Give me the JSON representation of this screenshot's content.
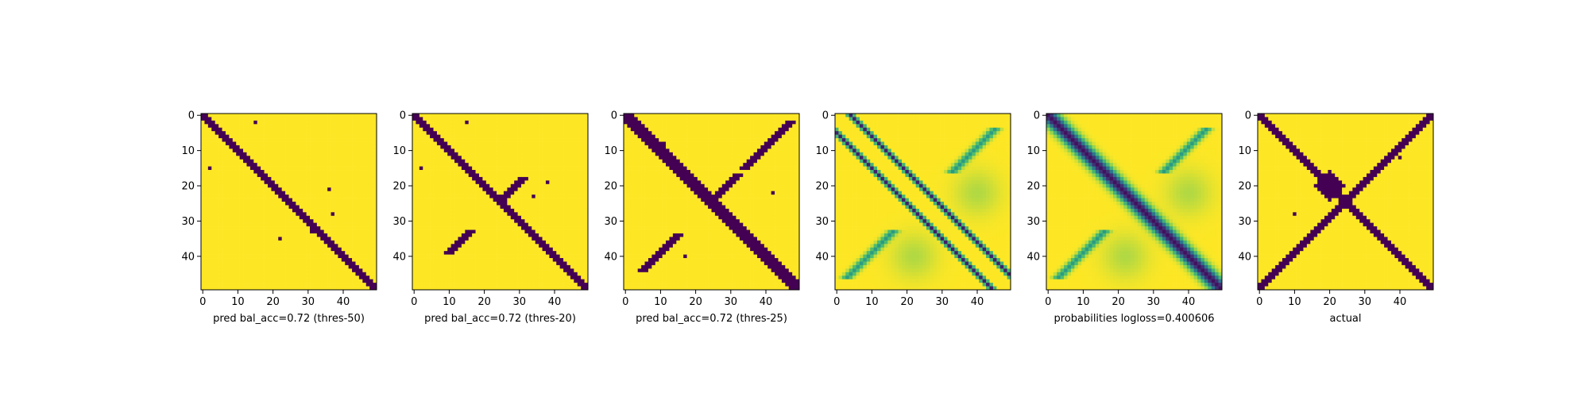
{
  "chart_data": [
    {
      "type": "heatmap",
      "colormap": "viridis",
      "title": "",
      "xlabel": "pred bal_acc=0.72 (thres-50)",
      "ylabel": "",
      "grid_size": 50,
      "xlim": [
        -0.5,
        49.5
      ],
      "ylim": [
        49.5,
        -0.5
      ],
      "xticks": [
        0,
        10,
        20,
        30,
        40
      ],
      "yticks": [
        0,
        10,
        20,
        30,
        40
      ],
      "binary": true,
      "main_diagonal_half_width": 1.5,
      "anti_band_segments": [],
      "extra_points": [
        [
          2,
          15
        ],
        [
          15,
          2
        ],
        [
          21,
          36
        ],
        [
          28,
          37
        ],
        [
          33,
          31
        ],
        [
          35,
          22
        ]
      ]
    },
    {
      "type": "heatmap",
      "colormap": "viridis",
      "title": "",
      "xlabel": "pred bal_acc=0.72 (thres-20)",
      "ylabel": "",
      "grid_size": 50,
      "xlim": [
        -0.5,
        49.5
      ],
      "ylim": [
        49.5,
        -0.5
      ],
      "xticks": [
        0,
        10,
        20,
        30,
        40
      ],
      "yticks": [
        0,
        10,
        20,
        30,
        40
      ],
      "binary": true,
      "main_diagonal_half_width": 1.5,
      "anti_band_segments": [
        [
          18,
          24
        ],
        [
          33,
          39
        ]
      ],
      "extra_points": [
        [
          2,
          15
        ],
        [
          15,
          2
        ],
        [
          19,
          38
        ],
        [
          23,
          34
        ]
      ]
    },
    {
      "type": "heatmap",
      "colormap": "viridis",
      "title": "",
      "xlabel": "pred bal_acc=0.72 (thres-25)",
      "ylabel": "",
      "grid_size": 50,
      "xlim": [
        -0.5,
        49.5
      ],
      "ylim": [
        49.5,
        -0.5
      ],
      "xticks": [
        0,
        10,
        20,
        30,
        40
      ],
      "yticks": [
        0,
        10,
        20,
        30,
        40
      ],
      "binary": true,
      "main_diagonal_half_width": 2.5,
      "anti_band_segments": [
        [
          2,
          8
        ],
        [
          9,
          15
        ],
        [
          17,
          25
        ],
        [
          34,
          44
        ]
      ],
      "extra_points": [
        [
          8,
          11
        ],
        [
          22,
          42
        ],
        [
          30,
          30
        ],
        [
          40,
          17
        ]
      ]
    },
    {
      "type": "heatmap",
      "colormap": "viridis",
      "title": "",
      "xlabel": "",
      "ylabel": "",
      "grid_size": 50,
      "xlim": [
        -0.5,
        49.5
      ],
      "ylim": [
        49.5,
        -0.5
      ],
      "xticks": [
        0,
        10,
        20,
        30,
        40
      ],
      "yticks": [
        0,
        10,
        20,
        30,
        40
      ],
      "binary": false,
      "diagonal_offsets": [
        -5,
        4
      ],
      "main_diagonal_half_width": 0,
      "anti_band_segments": [
        [
          4,
          16
        ],
        [
          33,
          46
        ]
      ],
      "anti_glow_centers": [
        [
          22,
          40
        ],
        [
          40,
          22
        ]
      ],
      "note_value_range": [
        0,
        1
      ]
    },
    {
      "type": "heatmap",
      "colormap": "viridis",
      "title": "",
      "xlabel": "probabilities logloss=0.400606",
      "ylabel": "",
      "grid_size": 50,
      "xlim": [
        -0.5,
        49.5
      ],
      "ylim": [
        49.5,
        -0.5
      ],
      "xticks": [
        0,
        10,
        20,
        30,
        40
      ],
      "yticks": [
        0,
        10,
        20,
        30,
        40
      ],
      "binary": false,
      "diagonal_offsets": [
        0
      ],
      "main_diagonal_half_width": 2,
      "anti_band_segments": [
        [
          4,
          16
        ],
        [
          33,
          46
        ]
      ],
      "anti_glow_centers": [
        [
          22,
          40
        ],
        [
          40,
          22
        ]
      ],
      "note_value_range": [
        0,
        1
      ]
    },
    {
      "type": "heatmap",
      "colormap": "viridis",
      "title": "",
      "xlabel": "actual",
      "ylabel": "",
      "grid_size": 50,
      "xlim": [
        -0.5,
        49.5
      ],
      "ylim": [
        49.5,
        -0.5
      ],
      "xticks": [
        0,
        10,
        20,
        30,
        40
      ],
      "yticks": [
        0,
        10,
        20,
        30,
        40
      ],
      "binary": true,
      "main_diagonal_half_width": 1.5,
      "anti_band_segments": [
        [
          0,
          49
        ]
      ],
      "center_blob": [
        20,
        20,
        4
      ],
      "extra_points": [
        [
          2,
          46
        ],
        [
          47,
          2
        ],
        [
          28,
          10
        ],
        [
          12,
          40
        ]
      ]
    }
  ]
}
